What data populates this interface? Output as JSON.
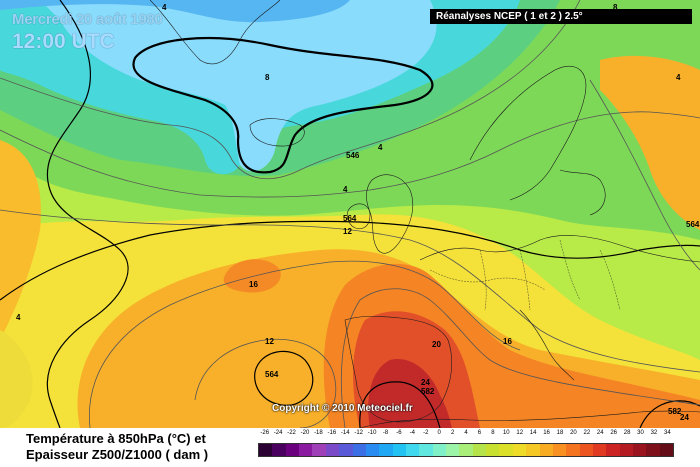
{
  "header": {
    "date": "Mercredi 20 août 1980",
    "time": "12:00 UTC",
    "source": "Réanalyses NCEP ( 1 et 2 ) 2.5°"
  },
  "copyright": "Copyright © 2010 Meteociel.fr",
  "legend": {
    "title_line1": "Température à 850hPa (°C) et",
    "title_line2": "Epaisseur Z500/Z1000 ( dam )",
    "scale_labels": [
      "-26",
      "-24",
      "-22",
      "-20",
      "-18",
      "-16",
      "-14",
      "-12",
      "-10",
      "-8",
      "-6",
      "-4",
      "-2",
      "0",
      "2",
      "4",
      "6",
      "8",
      "10",
      "12",
      "14",
      "16",
      "18",
      "20",
      "22",
      "24",
      "26",
      "28",
      "30",
      "32",
      "34"
    ],
    "scale_colors": [
      "#2b0033",
      "#4a005e",
      "#6a007e",
      "#8a1aa0",
      "#a040b8",
      "#7a4ac8",
      "#5a5ad8",
      "#3c6ee6",
      "#2a8cf0",
      "#20a8f4",
      "#22c2f2",
      "#40d8ee",
      "#60e8e0",
      "#80f0c8",
      "#9cf4a8",
      "#a8ee78",
      "#b4e44a",
      "#c8e030",
      "#dce028",
      "#eedc28",
      "#f6c826",
      "#f8ac24",
      "#f89022",
      "#f47420",
      "#ec5420",
      "#e03a22",
      "#cc2424",
      "#b41a22",
      "#9a1420",
      "#7e101c",
      "#640c18"
    ]
  },
  "map": {
    "contour_labels": [
      {
        "text": "4"
      },
      {
        "text": "8"
      },
      {
        "text": "4"
      },
      {
        "text": "546"
      },
      {
        "text": "4"
      },
      {
        "text": "564"
      },
      {
        "text": "12"
      },
      {
        "text": "16"
      },
      {
        "text": "12"
      },
      {
        "text": "564"
      },
      {
        "text": "20"
      },
      {
        "text": "16"
      },
      {
        "text": "24"
      },
      {
        "text": "582"
      },
      {
        "text": "4"
      },
      {
        "text": "4"
      },
      {
        "text": "564"
      },
      {
        "text": "582"
      },
      {
        "text": "24"
      },
      {
        "text": "8"
      }
    ]
  }
}
